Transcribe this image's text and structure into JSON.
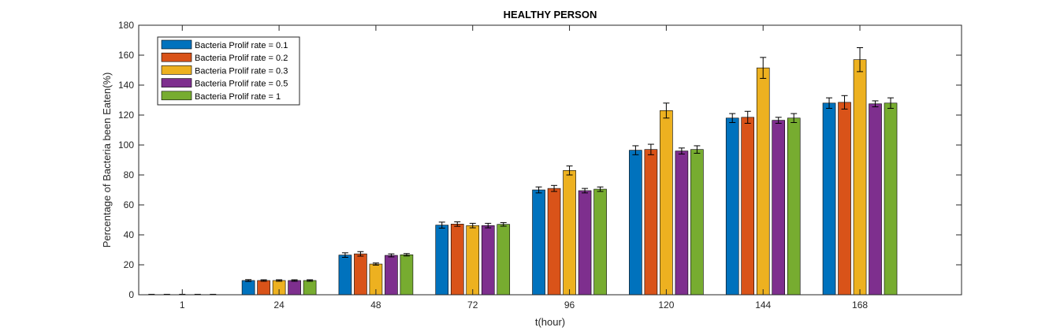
{
  "chart_data": {
    "type": "bar",
    "title": "HEALTHY PERSON",
    "xlabel": "t(hour)",
    "ylabel": "Percentage of Bacteria been Eaten(%)",
    "ylim": [
      0,
      180
    ],
    "yticks": [
      0,
      20,
      40,
      60,
      80,
      100,
      120,
      140,
      160,
      180
    ],
    "categories": [
      "1",
      "24",
      "48",
      "72",
      "96",
      "120",
      "144",
      "168"
    ],
    "legend_position": "top-left",
    "grid": false,
    "series": [
      {
        "name": "Bacteria Prolif rate = 0.1",
        "color": "#0072BD",
        "values": [
          0,
          9.5,
          26.5,
          46.5,
          70,
          96.5,
          118,
          128
        ],
        "errors": [
          0.3,
          0.6,
          1.5,
          2,
          2,
          3,
          3,
          3.5
        ]
      },
      {
        "name": "Bacteria Prolif rate = 0.2",
        "color": "#D95319",
        "values": [
          0,
          9.5,
          27.3,
          47.2,
          71,
          97,
          118.5,
          128.5
        ],
        "errors": [
          0.3,
          0.5,
          1.5,
          1.5,
          2,
          3.5,
          4,
          4.5
        ]
      },
      {
        "name": "Bacteria Prolif rate = 0.3",
        "color": "#EDB120",
        "values": [
          0,
          9.5,
          20.5,
          46.2,
          83,
          123,
          151.5,
          157
        ],
        "errors": [
          0.3,
          0.5,
          0.7,
          1.5,
          3,
          5,
          7,
          8
        ]
      },
      {
        "name": "Bacteria Prolif rate = 0.5",
        "color": "#7E2F8E",
        "values": [
          0,
          9.5,
          26.3,
          46.2,
          69.5,
          96,
          116.5,
          127.5
        ],
        "errors": [
          0.3,
          0.5,
          1,
          1.5,
          1.5,
          2,
          2,
          2
        ]
      },
      {
        "name": "Bacteria Prolif rate = 1",
        "color": "#77AC30",
        "values": [
          0,
          9.5,
          26.7,
          47,
          70.5,
          97,
          118,
          128
        ],
        "errors": [
          0.3,
          0.5,
          0.8,
          1.2,
          1.5,
          2.5,
          3,
          3.5
        ]
      }
    ]
  }
}
